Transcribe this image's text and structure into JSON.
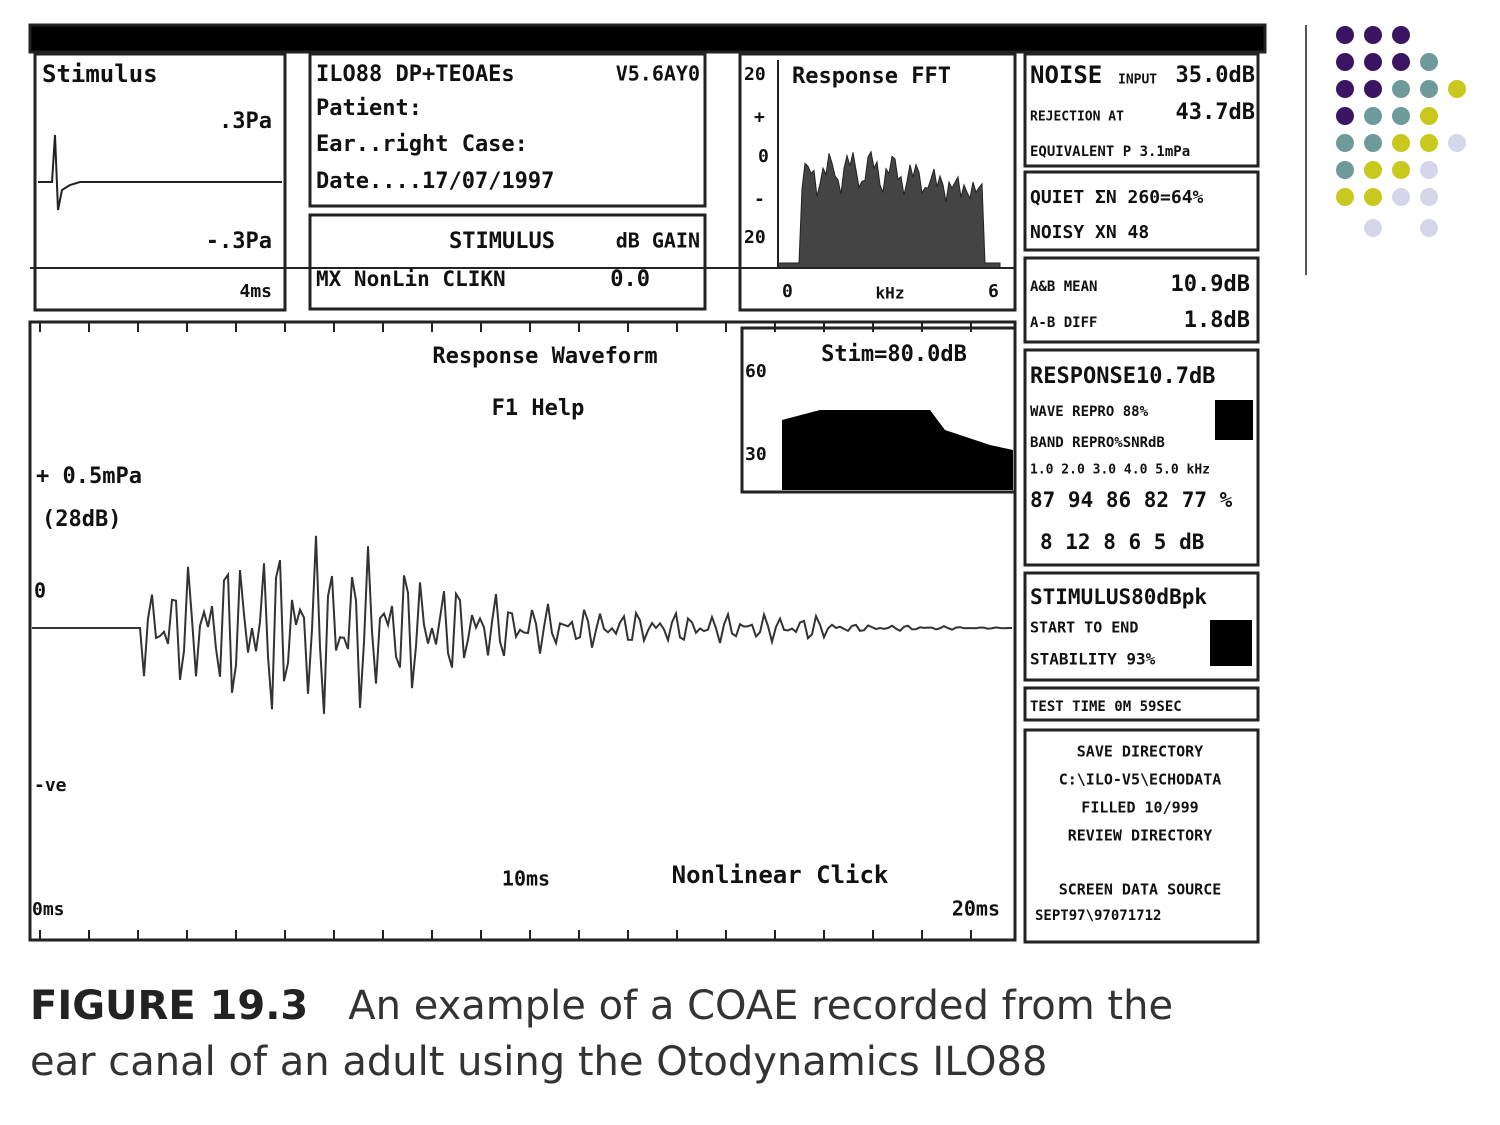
{
  "stimulus_panel": {
    "title": "Stimulus",
    "top": ".3Pa",
    "bottom": "-.3Pa",
    "time": "4ms"
  },
  "info_panel": {
    "program": "ILO88 DP+TEOAEs",
    "version": "V5.6AY0",
    "patient": "Patient:",
    "ear": "Ear..right Case:",
    "date": "Date....17/07/1997"
  },
  "gain_panel": {
    "stimulus": "STIMULUS",
    "gain": "dB GAIN",
    "mode": "MX NonLin CLIKN",
    "value": "0.0"
  },
  "fft_panel": {
    "title": "Response FFT",
    "y_top": "20",
    "plus": "+",
    "zero": "0",
    "minus": "-",
    "y_low": "20",
    "x_start": "0",
    "x_unit": "kHz",
    "x_end": "6"
  },
  "noise_panel": {
    "noise": "NOISE",
    "input": "INPUT",
    "input_value": "35.0dB",
    "rejection": "REJECTION AT",
    "rejection_value": "43.7dB",
    "equivalent": "EQUIVALENT P 3.1mPa"
  },
  "quiet_panel": {
    "quiet": "QUIET ΣN 260=64%",
    "noisy": "NOISY XN  48"
  },
  "mean_panel": {
    "mean": "A&B MEAN",
    "mean_value": "10.9dB",
    "diff": "A-B DIFF",
    "diff_value": "1.8dB"
  },
  "response_panel": {
    "response": "RESPONSE10.7dB",
    "wave_repro": "WAVE REPRO 88%",
    "band_repro": "BAND REPRO%SNRdB",
    "bands": "1.0 2.0 3.0 4.0 5.0 kHz",
    "repro": "87 94 86 82 77 %",
    "snr": "8 12  8  6  5 dB"
  },
  "stimulus_status": {
    "stimulus": "STIMULUS80dBpk",
    "start": "START TO END",
    "stability": "STABILITY  93%"
  },
  "test_time": "TEST TIME  0M 59SEC",
  "directory_panel": {
    "save": "SAVE DIRECTORY",
    "path": "C:\\ILO-V5\\ECHODATA",
    "filled": "FILLED 10/999",
    "review": "REVIEW DIRECTORY",
    "source": "SCREEN DATA SOURCE",
    "file": "SEPT97\\97071712"
  },
  "main_panel": {
    "title": "Response Waveform",
    "help": "F1 Help",
    "scale": "+ 0.5mPa",
    "scale_db": "(28dB)",
    "zero": "0",
    "negative": "-ve",
    "mid_time": "10ms",
    "mode": "Nonlinear Click",
    "start_time": "0ms",
    "end_time": "20ms"
  },
  "stim_level_panel": {
    "title": "Stim=80.0dB",
    "top": "60",
    "bottom": "30"
  },
  "caption": {
    "label": "FIGURE 19.3",
    "text": "An example of a COAE recorded from the ear canal of an adult using the Otodynamics ILO88"
  }
}
